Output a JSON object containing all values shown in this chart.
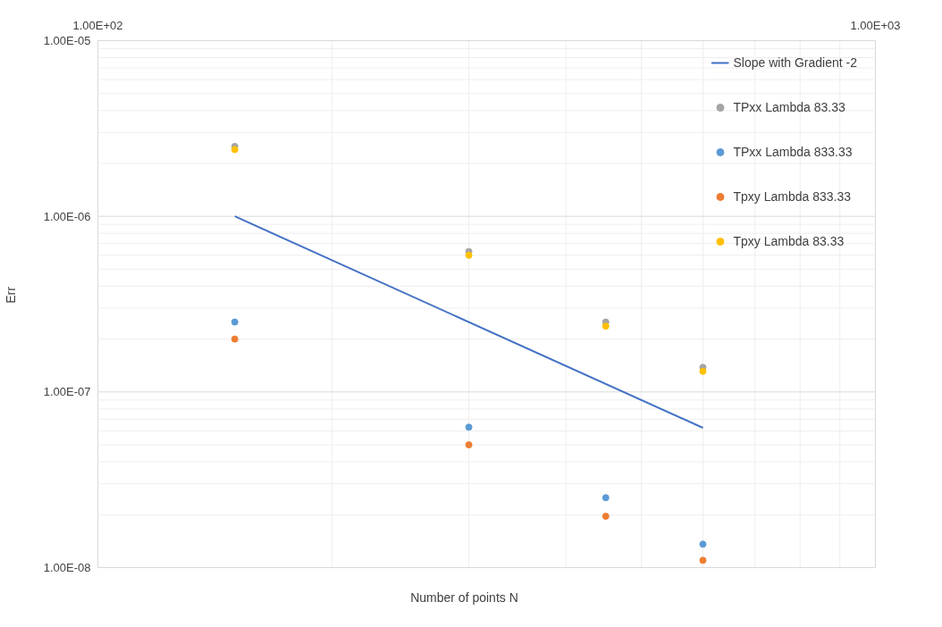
{
  "chart_data": {
    "type": "scatter",
    "xlabel": "Number of points N",
    "ylabel": "Err",
    "log": "xy",
    "xlim": [
      100,
      1000
    ],
    "ylim": [
      1e-08,
      1e-05
    ],
    "xticks": [
      {
        "value": 100,
        "label": "1.00E+02"
      },
      {
        "value": 1000,
        "label": "1.00E+03"
      }
    ],
    "yticks": [
      {
        "value": 1e-08,
        "label": "1.00E-08"
      },
      {
        "value": 1e-07,
        "label": "1.00E-07"
      },
      {
        "value": 1e-06,
        "label": "1.00E-06"
      },
      {
        "value": 1e-05,
        "label": "1.00E-05"
      }
    ],
    "grid": true,
    "legend": "top right",
    "marker": "circle",
    "x": [
      150,
      300,
      450,
      600
    ],
    "series": [
      {
        "name": "Slope with Gradient -2",
        "type": "line",
        "marker": "none",
        "color": "#4472c4",
        "x": [
          150,
          600
        ],
        "values": [
          1e-06,
          6.25e-08
        ]
      },
      {
        "name": "TPxx Lambda 83.33",
        "color": "#a5a5a5",
        "values": [
          2.5e-06,
          6.3e-07,
          2.5e-07,
          1.38e-07
        ]
      },
      {
        "name": "TPxx Lambda 833.33",
        "color": "#5b9bd5",
        "values": [
          2.5e-07,
          6.3e-08,
          2.5e-08,
          1.36e-08
        ]
      },
      {
        "name": "Tpxy Lambda 833.33",
        "color": "#ed7d31",
        "values": [
          2e-07,
          5e-08,
          1.96e-08,
          1.1e-08
        ]
      },
      {
        "name": "Tpxy Lambda 83.33",
        "color": "#ffc000",
        "values": [
          2.4e-06,
          6e-07,
          2.37e-07,
          1.31e-07
        ]
      }
    ]
  }
}
